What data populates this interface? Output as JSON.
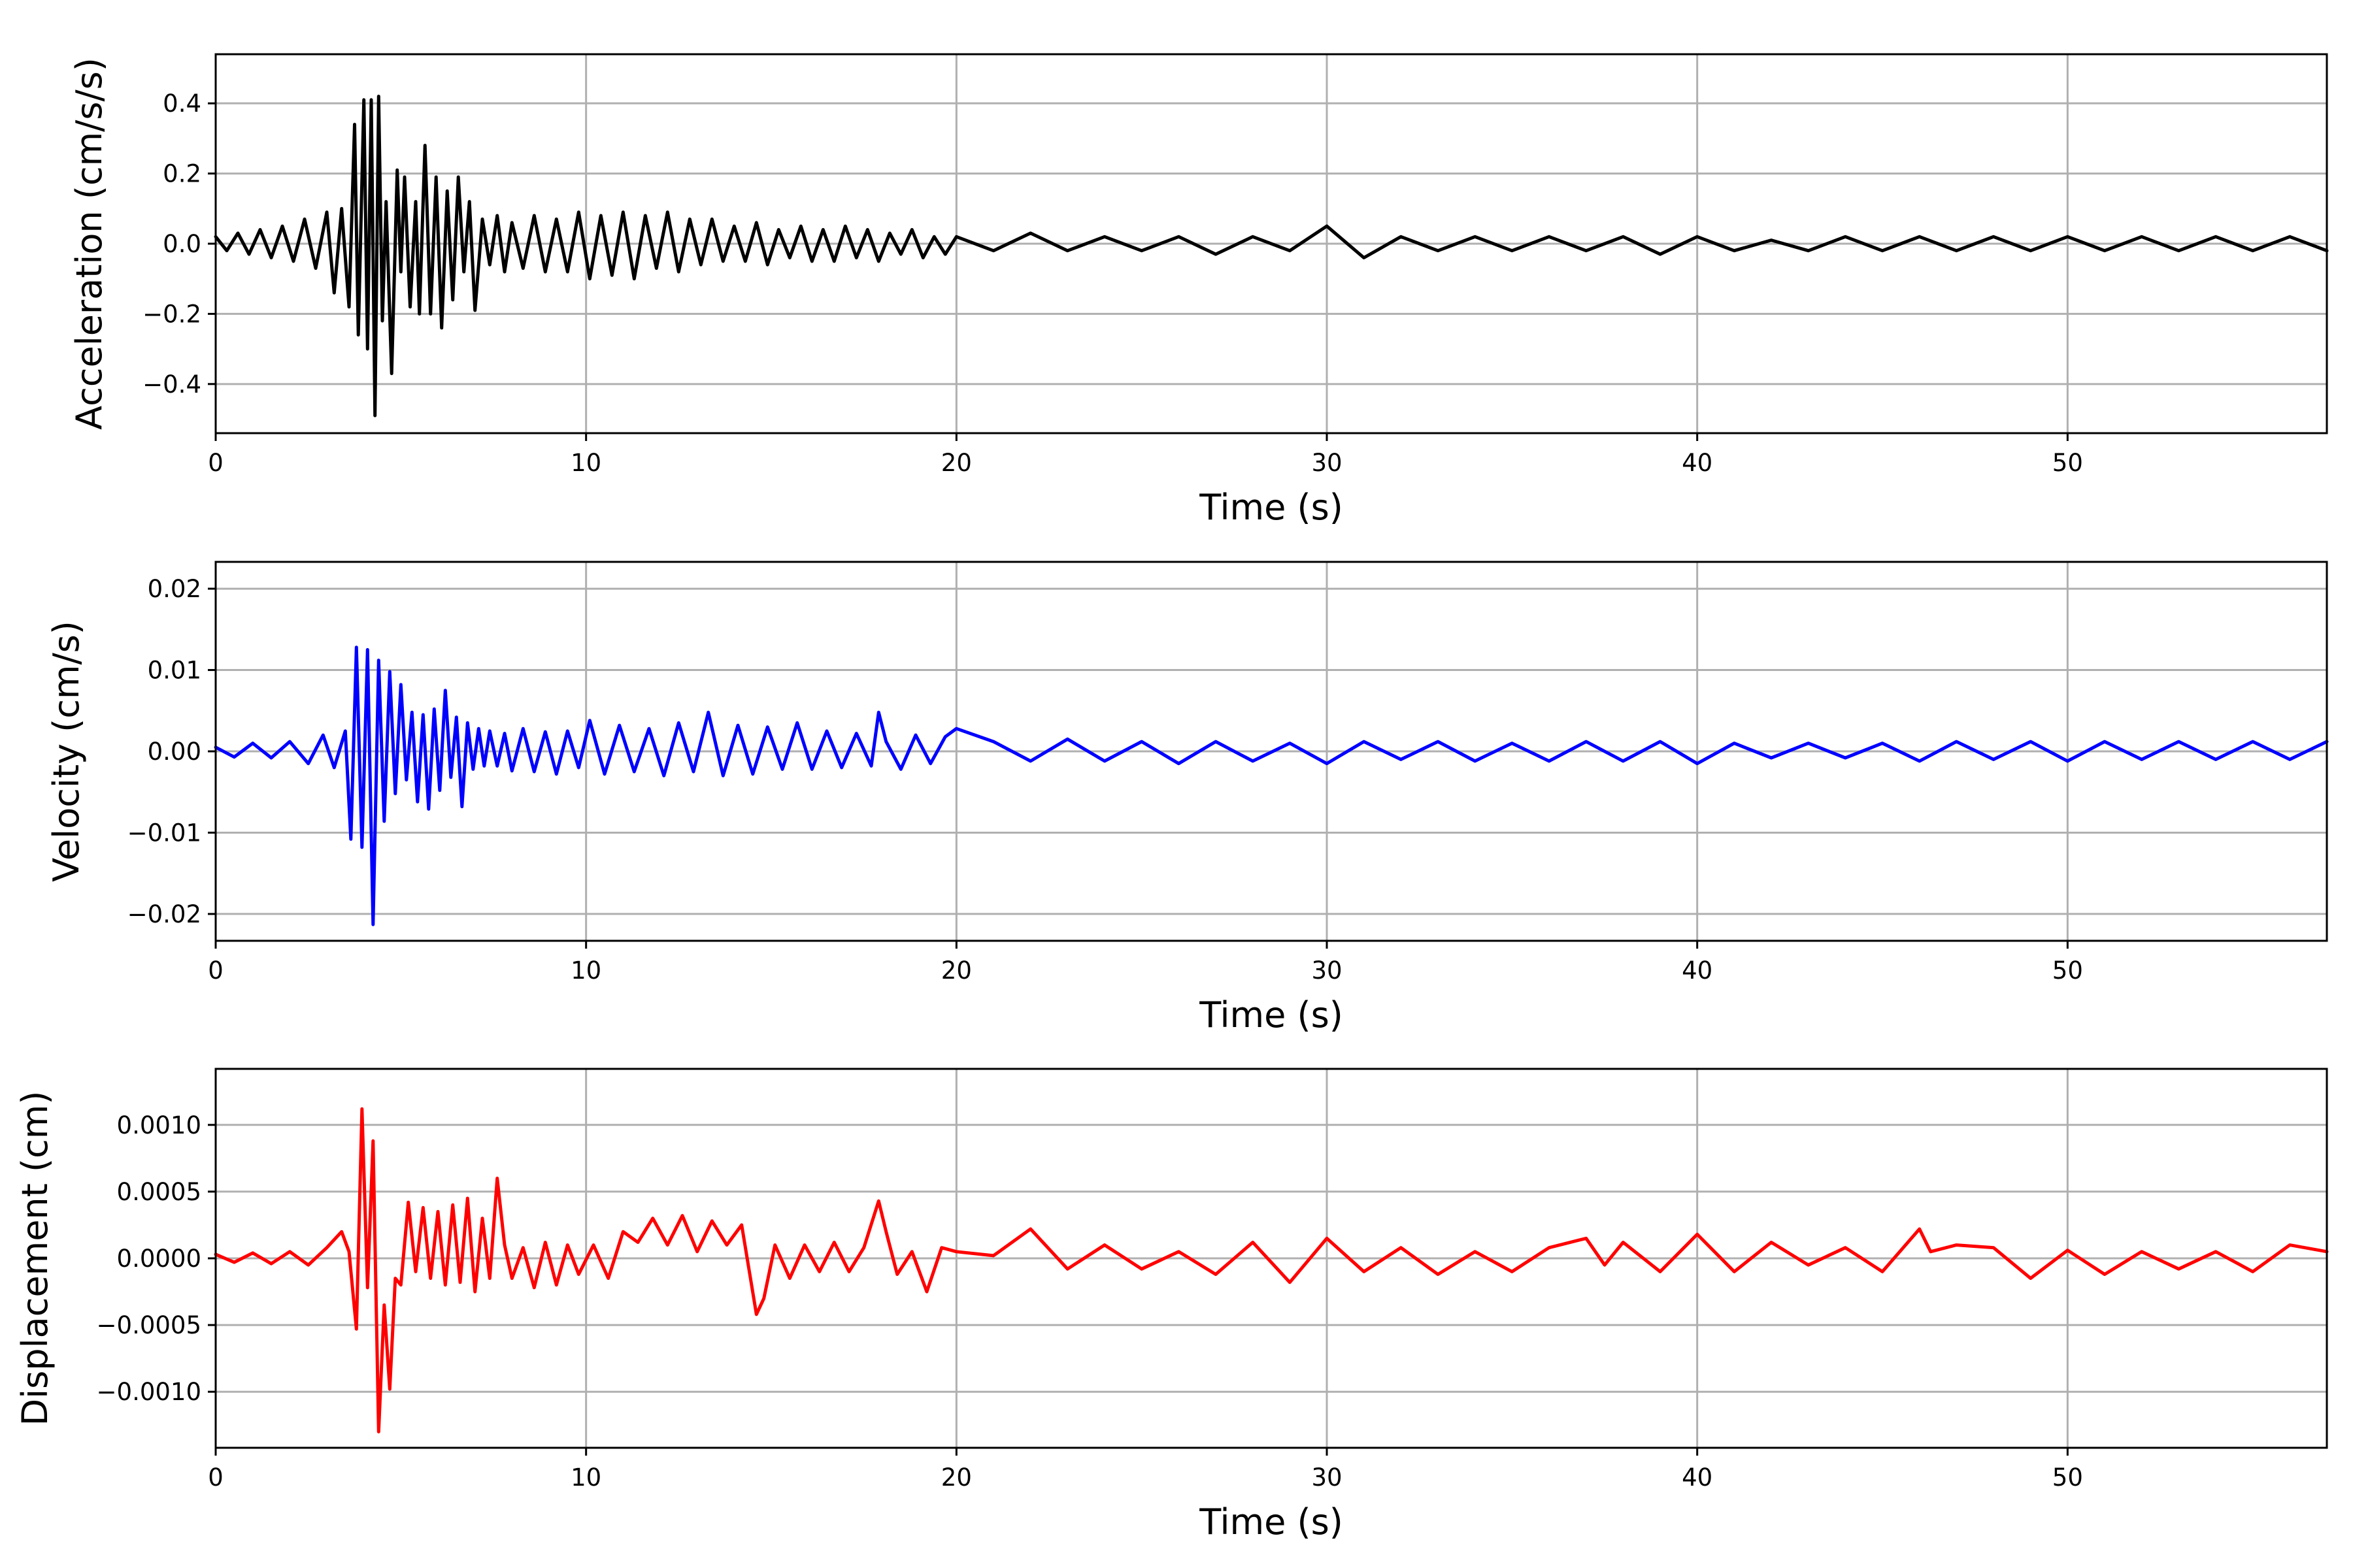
{
  "chart_data": [
    {
      "type": "line",
      "title": "",
      "xlabel": "Time (s)",
      "ylabel": "Acceleration (cm/s/s)",
      "xlim": [
        0,
        57
      ],
      "ylim": [
        -0.54,
        0.54
      ],
      "xticks": [
        0,
        10,
        20,
        30,
        40,
        50
      ],
      "xtick_labels": [
        "0",
        "10",
        "20",
        "30",
        "40",
        "50"
      ],
      "yticks": [
        -0.4,
        -0.2,
        0.0,
        0.2,
        0.4
      ],
      "ytick_labels": [
        "−0.4",
        "−0.2",
        "0.0",
        "0.2",
        "0.4"
      ],
      "grid": true,
      "series": [
        {
          "color": "#000000",
          "x": [
            0.0,
            0.3,
            0.6,
            0.9,
            1.2,
            1.5,
            1.8,
            2.1,
            2.4,
            2.7,
            3.0,
            3.2,
            3.4,
            3.6,
            3.75,
            3.85,
            4.0,
            4.1,
            4.2,
            4.3,
            4.4,
            4.5,
            4.6,
            4.75,
            4.9,
            5.0,
            5.1,
            5.25,
            5.4,
            5.5,
            5.65,
            5.8,
            5.95,
            6.1,
            6.25,
            6.4,
            6.55,
            6.7,
            6.85,
            7.0,
            7.2,
            7.4,
            7.6,
            7.8,
            8.0,
            8.3,
            8.6,
            8.9,
            9.2,
            9.5,
            9.8,
            10.1,
            10.4,
            10.7,
            11.0,
            11.3,
            11.6,
            11.9,
            12.2,
            12.5,
            12.8,
            13.1,
            13.4,
            13.7,
            14.0,
            14.3,
            14.6,
            14.9,
            15.2,
            15.5,
            15.8,
            16.1,
            16.4,
            16.7,
            17.0,
            17.3,
            17.6,
            17.9,
            18.2,
            18.5,
            18.8,
            19.1,
            19.4,
            19.7,
            20.0,
            21.0,
            22.0,
            23.0,
            24.0,
            25.0,
            26.0,
            27.0,
            28.0,
            29.0,
            30.0,
            31.0,
            32.0,
            33.0,
            34.0,
            35.0,
            36.0,
            37.0,
            38.0,
            39.0,
            40.0,
            41.0,
            42.0,
            43.0,
            44.0,
            45.0,
            46.0,
            47.0,
            48.0,
            49.0,
            50.0,
            51.0,
            52.0,
            53.0,
            54.0,
            55.0,
            56.0,
            57.0
          ],
          "y": [
            0.02,
            -0.02,
            0.03,
            -0.03,
            0.04,
            -0.04,
            0.05,
            -0.05,
            0.07,
            -0.07,
            0.09,
            -0.14,
            0.1,
            -0.18,
            0.34,
            -0.26,
            0.41,
            -0.3,
            0.41,
            -0.49,
            0.42,
            -0.22,
            0.12,
            -0.37,
            0.21,
            -0.08,
            0.19,
            -0.18,
            0.12,
            -0.2,
            0.28,
            -0.2,
            0.19,
            -0.24,
            0.15,
            -0.16,
            0.19,
            -0.08,
            0.12,
            -0.19,
            0.07,
            -0.06,
            0.08,
            -0.08,
            0.06,
            -0.07,
            0.08,
            -0.08,
            0.07,
            -0.08,
            0.09,
            -0.1,
            0.08,
            -0.09,
            0.09,
            -0.1,
            0.08,
            -0.07,
            0.09,
            -0.08,
            0.07,
            -0.06,
            0.07,
            -0.05,
            0.05,
            -0.05,
            0.06,
            -0.06,
            0.04,
            -0.04,
            0.05,
            -0.05,
            0.04,
            -0.05,
            0.05,
            -0.04,
            0.04,
            -0.05,
            0.03,
            -0.03,
            0.04,
            -0.04,
            0.02,
            -0.03,
            0.02,
            -0.02,
            0.03,
            -0.02,
            0.02,
            -0.02,
            0.02,
            -0.03,
            0.02,
            -0.02,
            0.05,
            -0.04,
            0.02,
            -0.02,
            0.02,
            -0.02,
            0.02,
            -0.02,
            0.02,
            -0.03,
            0.02,
            -0.02,
            0.01,
            -0.02,
            0.02,
            -0.02,
            0.02,
            -0.02,
            0.02,
            -0.02,
            0.02,
            -0.02,
            0.02,
            -0.02,
            0.02,
            -0.02,
            0.02,
            -0.02
          ]
        }
      ]
    },
    {
      "type": "line",
      "title": "",
      "xlabel": "Time (s)",
      "ylabel": "Velocity (cm/s)",
      "xlim": [
        0,
        57
      ],
      "ylim": [
        -0.0233,
        0.0233
      ],
      "xticks": [
        0,
        10,
        20,
        30,
        40,
        50
      ],
      "xtick_labels": [
        "0",
        "10",
        "20",
        "30",
        "40",
        "50"
      ],
      "yticks": [
        -0.02,
        -0.01,
        0.0,
        0.01,
        0.02
      ],
      "ytick_labels": [
        "−0.02",
        "−0.01",
        "0.00",
        "0.01",
        "0.02"
      ],
      "grid": true,
      "series": [
        {
          "color": "#0000ff",
          "x": [
            0.0,
            0.5,
            1.0,
            1.5,
            2.0,
            2.5,
            2.9,
            3.2,
            3.5,
            3.65,
            3.8,
            3.95,
            4.1,
            4.25,
            4.4,
            4.55,
            4.7,
            4.85,
            5.0,
            5.15,
            5.3,
            5.45,
            5.6,
            5.75,
            5.9,
            6.05,
            6.2,
            6.35,
            6.5,
            6.65,
            6.8,
            6.95,
            7.1,
            7.25,
            7.4,
            7.6,
            7.8,
            8.0,
            8.3,
            8.6,
            8.9,
            9.2,
            9.5,
            9.8,
            10.1,
            10.5,
            10.9,
            11.3,
            11.7,
            12.1,
            12.5,
            12.9,
            13.3,
            13.7,
            14.1,
            14.5,
            14.9,
            15.3,
            15.7,
            16.1,
            16.5,
            16.9,
            17.3,
            17.7,
            17.9,
            18.1,
            18.5,
            18.9,
            19.3,
            19.7,
            20.0,
            21.0,
            22.0,
            23.0,
            24.0,
            25.0,
            26.0,
            27.0,
            28.0,
            29.0,
            30.0,
            31.0,
            32.0,
            33.0,
            34.0,
            35.0,
            36.0,
            37.0,
            38.0,
            39.0,
            40.0,
            41.0,
            42.0,
            43.0,
            44.0,
            45.0,
            46.0,
            47.0,
            48.0,
            49.0,
            50.0,
            51.0,
            52.0,
            53.0,
            54.0,
            55.0,
            56.0,
            57.0
          ],
          "y": [
            0.0005,
            -0.0007,
            0.001,
            -0.0008,
            0.0012,
            -0.0015,
            0.002,
            -0.002,
            0.0025,
            -0.0108,
            0.0128,
            -0.0118,
            0.0125,
            -0.0213,
            0.0112,
            -0.0086,
            0.0098,
            -0.0052,
            0.0082,
            -0.0035,
            0.0048,
            -0.0062,
            0.0045,
            -0.0071,
            0.0052,
            -0.0048,
            0.0075,
            -0.0032,
            0.0042,
            -0.0068,
            0.0035,
            -0.0022,
            0.0028,
            -0.0018,
            0.0025,
            -0.0018,
            0.0022,
            -0.0024,
            0.0028,
            -0.0025,
            0.0024,
            -0.0028,
            0.0025,
            -0.002,
            0.0038,
            -0.0028,
            0.0032,
            -0.0025,
            0.0028,
            -0.003,
            0.0035,
            -0.0025,
            0.0048,
            -0.003,
            0.0032,
            -0.0028,
            0.003,
            -0.0022,
            0.0035,
            -0.0022,
            0.0025,
            -0.002,
            0.0022,
            -0.0018,
            0.0048,
            0.0012,
            -0.0022,
            0.002,
            -0.0015,
            0.0018,
            0.0028,
            0.0012,
            -0.0012,
            0.0015,
            -0.0012,
            0.0012,
            -0.0015,
            0.0012,
            -0.0012,
            0.001,
            -0.0015,
            0.0012,
            -0.001,
            0.0012,
            -0.0012,
            0.001,
            -0.0012,
            0.0012,
            -0.0012,
            0.0012,
            -0.0015,
            0.001,
            -0.0008,
            0.001,
            -0.0008,
            0.001,
            -0.0012,
            0.0012,
            -0.001,
            0.0012,
            -0.0012,
            0.0012,
            -0.001,
            0.0012,
            -0.001,
            0.0012,
            -0.001,
            0.0012
          ]
        }
      ]
    },
    {
      "type": "line",
      "title": "",
      "xlabel": "Time (s)",
      "ylabel": "Displacement (cm)",
      "xlim": [
        0,
        57
      ],
      "ylim": [
        -0.00142,
        0.00142
      ],
      "xticks": [
        0,
        10,
        20,
        30,
        40,
        50
      ],
      "xtick_labels": [
        "0",
        "10",
        "20",
        "30",
        "40",
        "50"
      ],
      "yticks": [
        -0.001,
        -0.0005,
        0.0,
        0.0005,
        0.001
      ],
      "ytick_labels": [
        "−0.0010",
        "−0.0005",
        "0.0000",
        "0.0005",
        "0.0010"
      ],
      "grid": true,
      "series": [
        {
          "color": "#ff0000",
          "x": [
            0.0,
            0.5,
            1.0,
            1.5,
            2.0,
            2.5,
            3.0,
            3.4,
            3.6,
            3.8,
            3.95,
            4.1,
            4.25,
            4.4,
            4.55,
            4.7,
            4.85,
            5.0,
            5.2,
            5.4,
            5.6,
            5.8,
            6.0,
            6.2,
            6.4,
            6.6,
            6.8,
            7.0,
            7.2,
            7.4,
            7.6,
            7.8,
            8.0,
            8.3,
            8.6,
            8.9,
            9.2,
            9.5,
            9.8,
            10.2,
            10.6,
            11.0,
            11.4,
            11.8,
            12.2,
            12.6,
            13.0,
            13.4,
            13.8,
            14.2,
            14.6,
            14.8,
            15.1,
            15.5,
            15.9,
            16.3,
            16.7,
            17.1,
            17.5,
            17.9,
            18.1,
            18.4,
            18.8,
            19.2,
            19.6,
            20.0,
            21.0,
            22.0,
            23.0,
            24.0,
            25.0,
            26.0,
            27.0,
            28.0,
            29.0,
            30.0,
            31.0,
            32.0,
            33.0,
            34.0,
            35.0,
            36.0,
            37.0,
            37.5,
            38.0,
            39.0,
            40.0,
            41.0,
            42.0,
            43.0,
            44.0,
            45.0,
            46.0,
            46.3,
            47.0,
            48.0,
            49.0,
            50.0,
            51.0,
            52.0,
            53.0,
            54.0,
            55.0,
            56.0,
            57.0
          ],
          "y": [
            3e-05,
            -3e-05,
            4e-05,
            -4e-05,
            5e-05,
            -5e-05,
            8e-05,
            0.0002,
            5e-05,
            -0.00053,
            0.00112,
            -0.00022,
            0.00088,
            -0.0013,
            -0.00035,
            -0.00098,
            -0.00015,
            -0.0002,
            0.00042,
            -0.0001,
            0.00038,
            -0.00015,
            0.00035,
            -0.0002,
            0.0004,
            -0.00018,
            0.00045,
            -0.00025,
            0.0003,
            -0.00015,
            0.0006,
            0.0001,
            -0.00015,
            8e-05,
            -0.00022,
            0.00012,
            -0.0002,
            0.0001,
            -0.00012,
            0.0001,
            -0.00015,
            0.0002,
            0.00012,
            0.0003,
            0.0001,
            0.00032,
            5e-05,
            0.00028,
            0.0001,
            0.00025,
            -0.00042,
            -0.0003,
            0.0001,
            -0.00015,
            0.0001,
            -0.0001,
            0.00012,
            -0.0001,
            8e-05,
            0.00043,
            0.0002,
            -0.00012,
            5e-05,
            -0.00025,
            8e-05,
            5e-05,
            2e-05,
            0.00022,
            -8e-05,
            0.0001,
            -8e-05,
            5e-05,
            -0.00012,
            0.00012,
            -0.00018,
            0.00015,
            -0.0001,
            8e-05,
            -0.00012,
            5e-05,
            -0.0001,
            8e-05,
            0.00015,
            -5e-05,
            0.00012,
            -0.0001,
            0.00018,
            -0.0001,
            0.00012,
            -5e-05,
            8e-05,
            -0.0001,
            0.00022,
            5e-05,
            0.0001,
            8e-05,
            -0.00015,
            6e-05,
            -0.00012,
            5e-05,
            -8e-05,
            5e-05,
            -0.0001,
            0.0001,
            5e-05
          ]
        }
      ]
    }
  ]
}
